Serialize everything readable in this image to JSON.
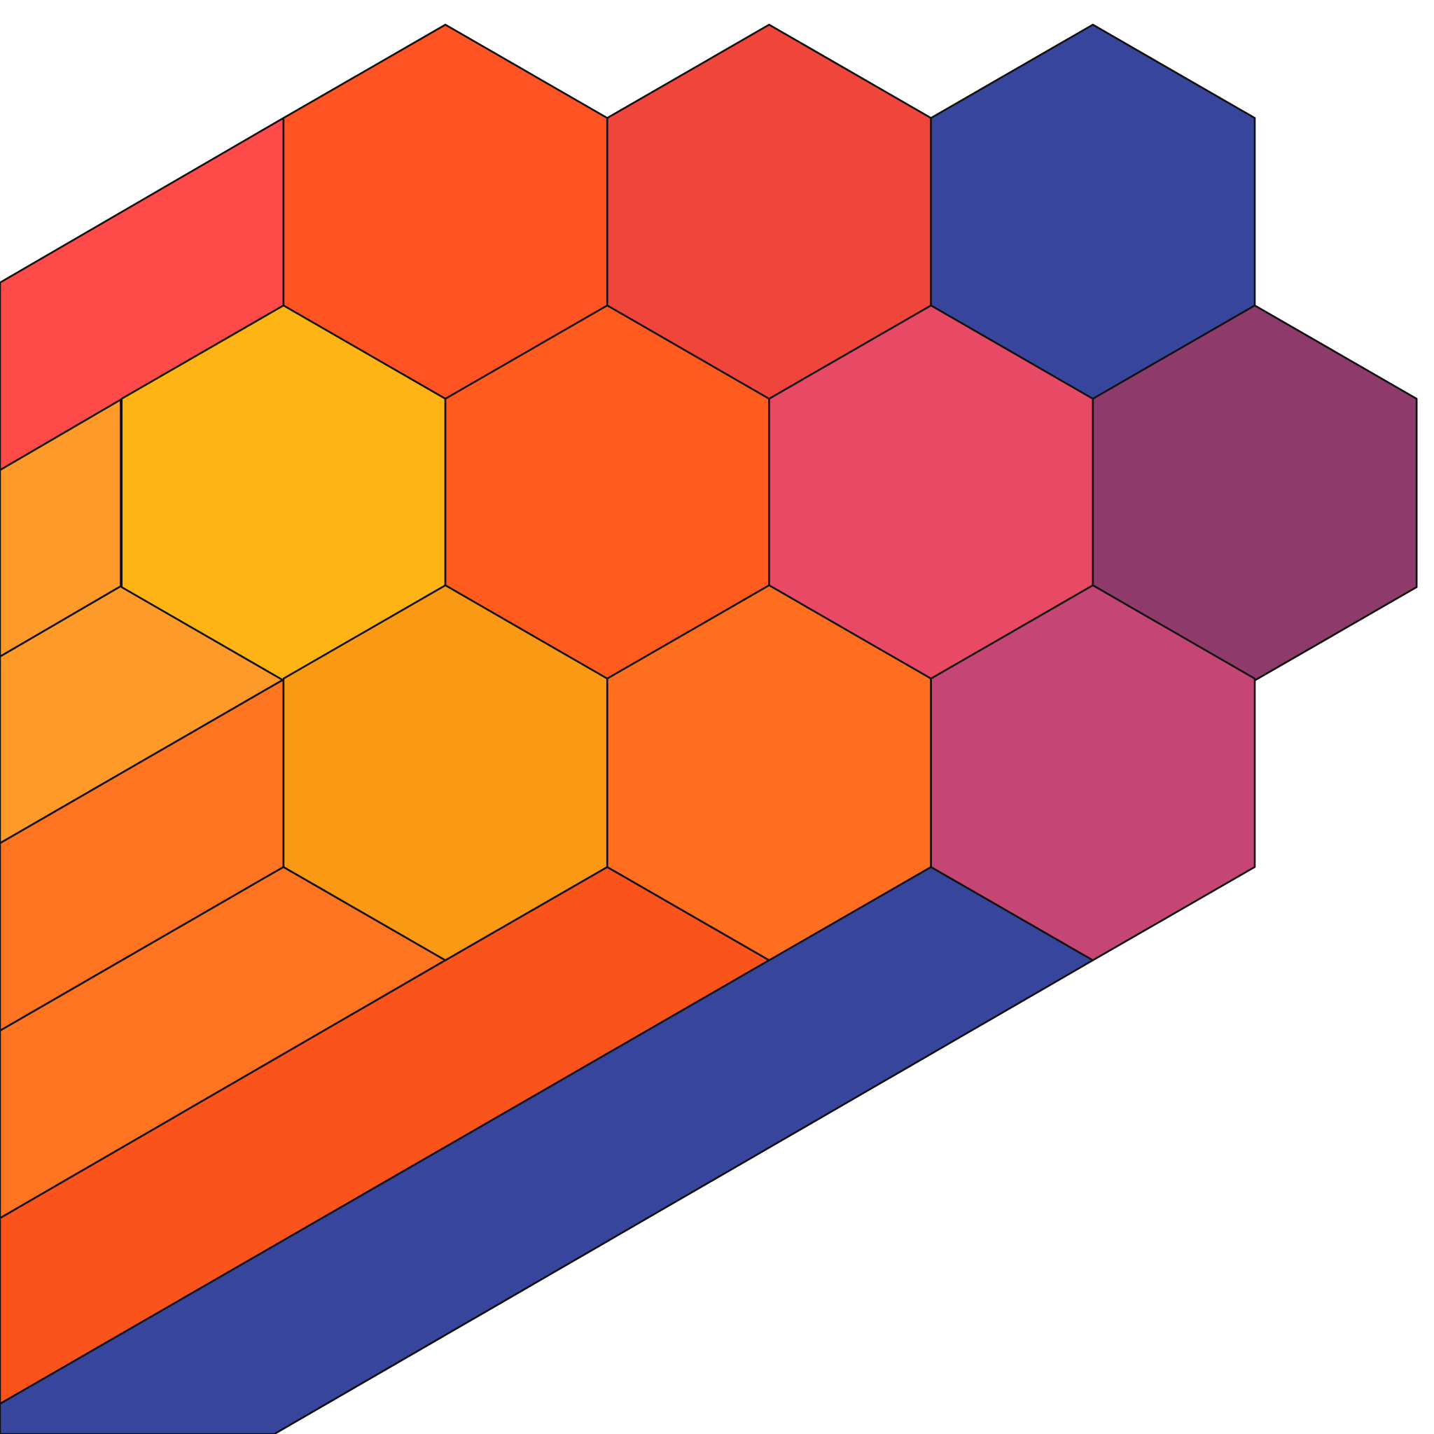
{
  "colors": {
    "background": "#ffffff",
    "outline": "#111111",
    "band_red": "#FF4A4A",
    "band_light_orange_top": "#FD9A2A",
    "band_light_orange": "#FD9A2A",
    "band_orange_1": "#FE7420",
    "band_orange_2": "#FE7420",
    "band_red_orange": "#FA531C",
    "band_blue": "#38459C",
    "hex_r1_c1": "#FF5323",
    "hex_r1_c2": "#F0453A",
    "hex_r1_c3": "#38459C",
    "hex_r2_c1": "#FDB414",
    "hex_r2_c2": "#FF5B1F",
    "hex_r2_c3": "#E84A66",
    "hex_r2_c4": "#8E3A6A",
    "hex_r3_c1": "#F99914",
    "hex_r3_c2": "#FF6E1F",
    "hex_r3_c3": "#C54674"
  }
}
